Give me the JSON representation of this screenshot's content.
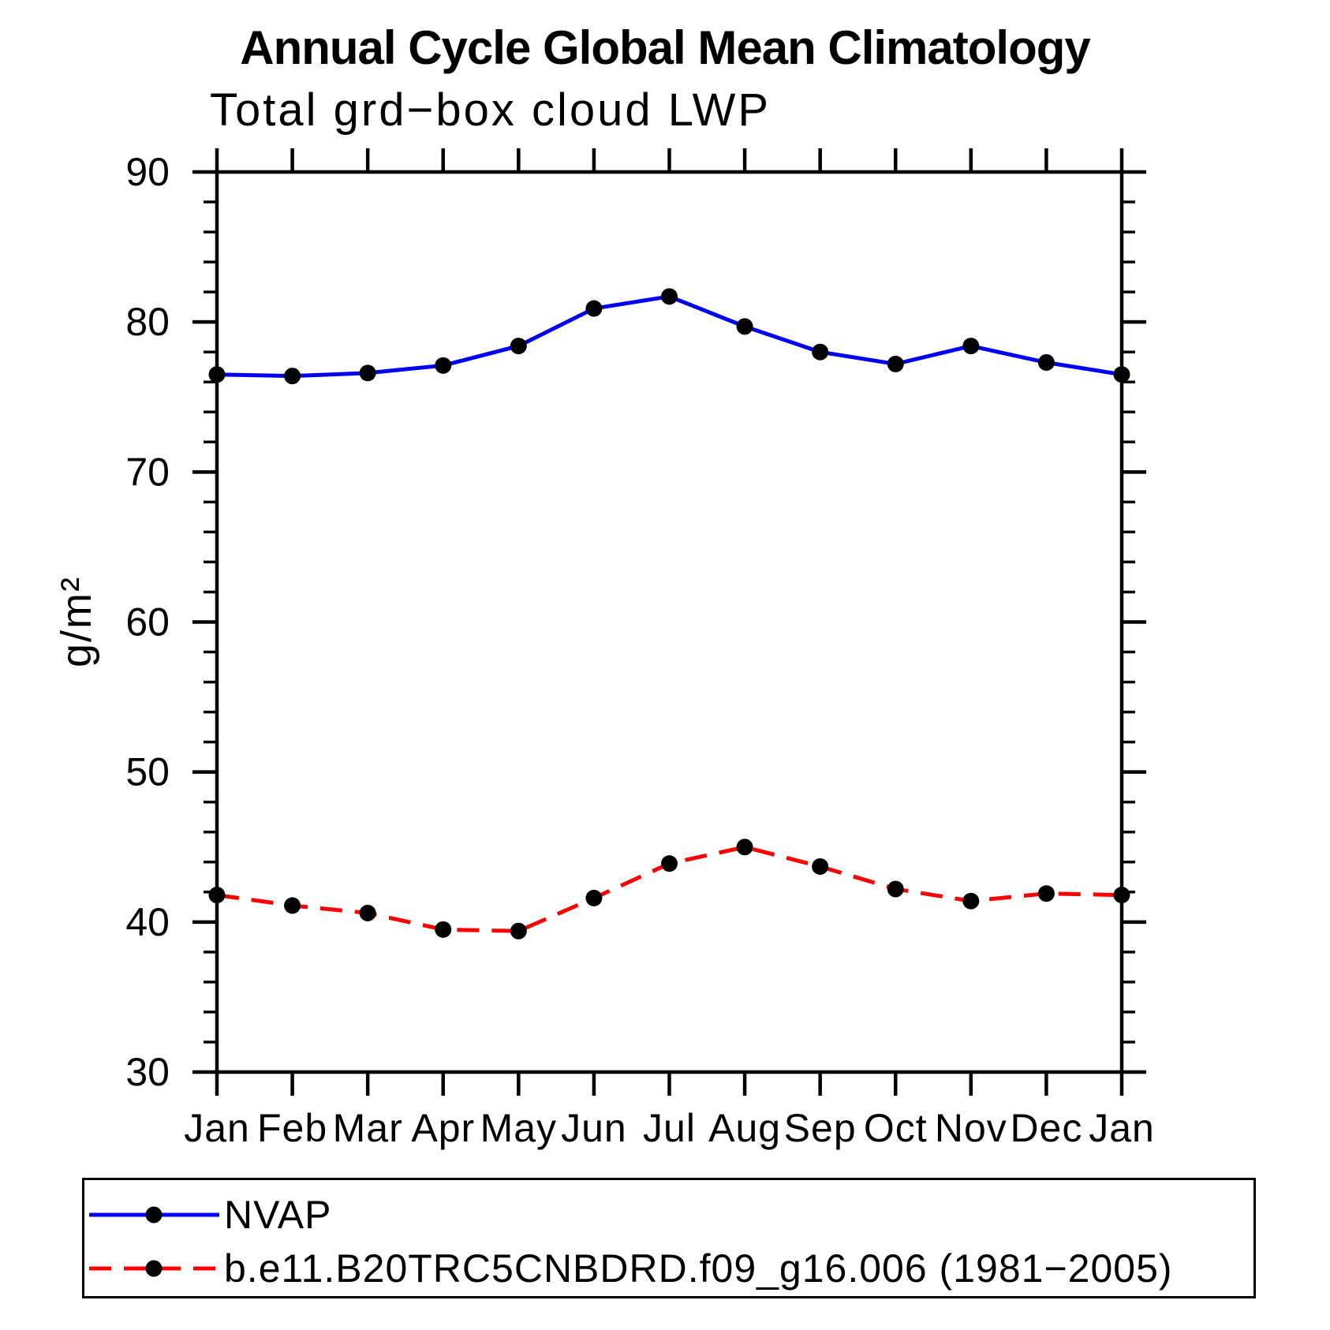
{
  "chart_data": {
    "type": "line",
    "title": "Annual Cycle Global Mean Climatology",
    "subtitle": "Total grd−box cloud LWP",
    "ylabel": "g/m²",
    "ylim": [
      30,
      90
    ],
    "y_major_ticks": [
      30,
      40,
      50,
      60,
      70,
      80,
      90
    ],
    "y_minor_step": 2,
    "grid": false,
    "legend_position": "bottom",
    "categories": [
      "Jan",
      "Feb",
      "Mar",
      "Apr",
      "May",
      "Jun",
      "Jul",
      "Aug",
      "Sep",
      "Oct",
      "Nov",
      "Dec",
      "Jan"
    ],
    "series": [
      {
        "name": "NVAP",
        "color": "#0000f5",
        "line_style": "solid",
        "marker": "circle",
        "marker_color": "#000000",
        "values": [
          76.5,
          76.4,
          76.6,
          77.1,
          78.4,
          80.9,
          81.7,
          79.7,
          78.0,
          77.2,
          78.4,
          77.3,
          76.5
        ]
      },
      {
        "name": "b.e11.B20TRC5CNBDRD.f09_g16.006 (1981−2005)",
        "color": "#ff0000",
        "line_style": "dashed",
        "marker": "circle",
        "marker_color": "#000000",
        "values": [
          41.8,
          41.1,
          40.6,
          39.5,
          39.4,
          41.6,
          43.9,
          45.0,
          43.7,
          42.2,
          41.4,
          41.9,
          41.8
        ]
      }
    ]
  }
}
